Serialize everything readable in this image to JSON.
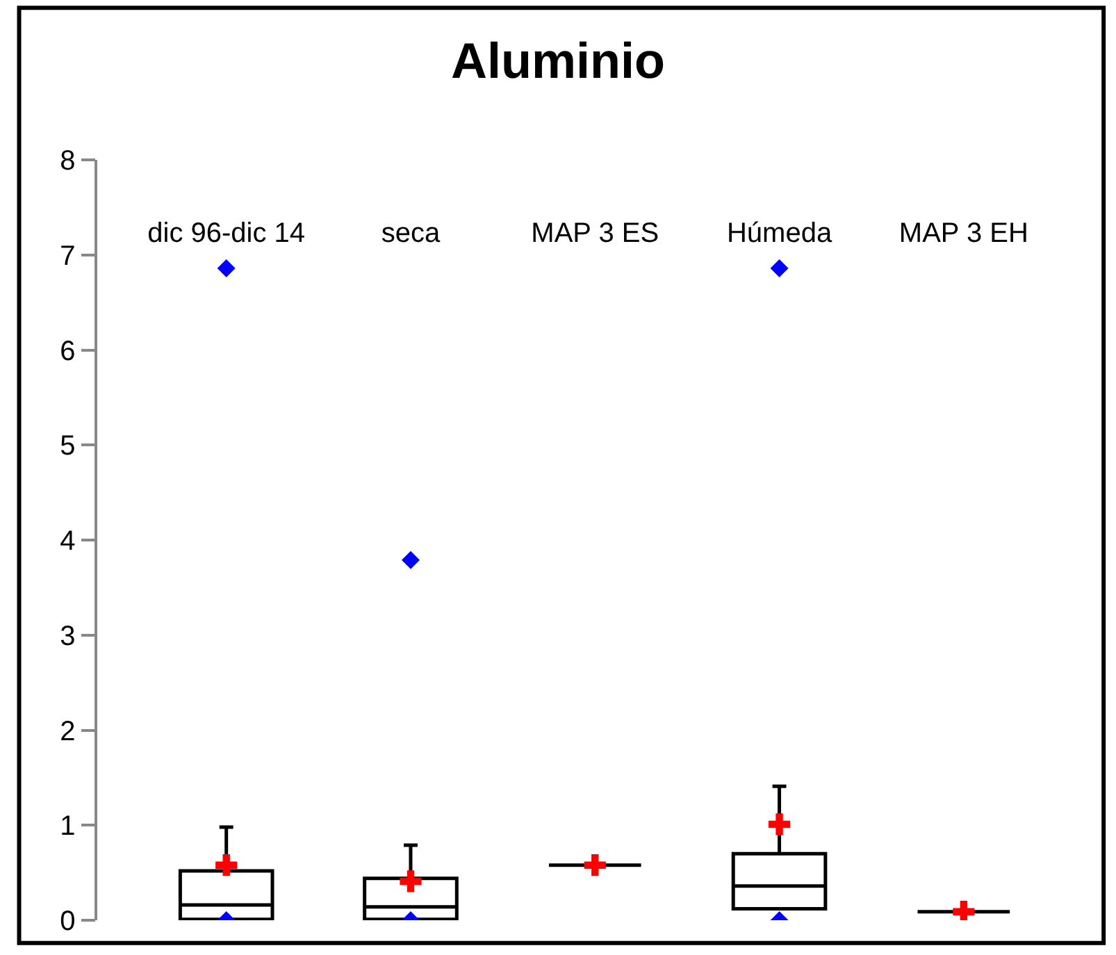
{
  "chart_data": {
    "type": "box",
    "title": "Aluminio",
    "categories": [
      "dic 96-dic 14",
      "seca",
      "MAP 3 ES",
      "Húmeda",
      "MAP 3 EH"
    ],
    "boxes": [
      {
        "low": 0,
        "q1": 0.01,
        "median": 0.16,
        "q3": 0.52,
        "high": 0.98,
        "mean": 0.58,
        "outliers": [
          0,
          6.86
        ]
      },
      {
        "low": 0,
        "q1": 0.01,
        "median": 0.14,
        "q3": 0.44,
        "high": 0.79,
        "mean": 0.41,
        "outliers": [
          0,
          3.79
        ]
      },
      {
        "low": 0.58,
        "q1": 0.58,
        "median": 0.58,
        "q3": 0.58,
        "high": 0.58,
        "mean": 0.58
      },
      {
        "low": 0.12,
        "q1": 0.12,
        "median": 0.36,
        "q3": 0.7,
        "high": 1.41,
        "mean": 1.01,
        "outliers": [
          0,
          6.86
        ]
      },
      {
        "low": 0.09,
        "q1": 0.09,
        "median": 0.09,
        "q3": 0.09,
        "high": 0.09,
        "mean": 0.09
      }
    ],
    "ylim": [
      0,
      8
    ],
    "yticks": [
      0,
      1,
      2,
      3,
      4,
      5,
      6,
      7,
      8
    ]
  }
}
